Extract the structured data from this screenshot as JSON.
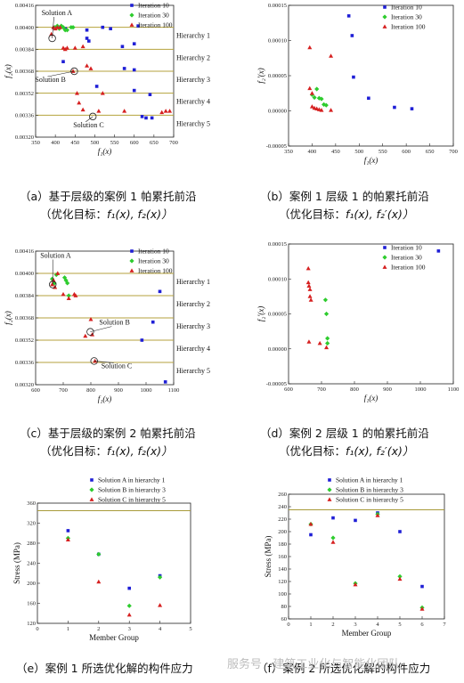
{
  "colors": {
    "iter10": "#1f1fd6",
    "iter30": "#2ecc2e",
    "iter100": "#d62020",
    "hline": "#b5a23c",
    "refline": "#a89a3a",
    "solA": "#1f1fd6",
    "solB": "#2ecc2e",
    "solC": "#d62020"
  },
  "captions": {
    "a1": "（a）基于层级的案例 1 帕累托前沿",
    "a2": "（优化目标：",
    "b1": "（b）案例 1 层级 1 的帕累托前沿",
    "b2": "（优化目标：",
    "c1": "（c）基于层级的案例 2 帕累托前沿",
    "c2": "（优化目标：",
    "d1": "（d）案例 2 层级 1 的帕累托前沿",
    "d2": "（优化目标：",
    "e1": "（e）案例 1 所选优化解的构件应力",
    "f1": "（f）案例 2 所选优化解的构件应力",
    "f1f2": "f₁(x), f₂(x)）",
    "f1f2p": "f₁(x), f₂′(x)）"
  },
  "watermark": "服务号 · 建筑工业化与智能化团队",
  "chart_data": [
    {
      "id": "a",
      "type": "scatter",
      "xlabel": "f₁(x)",
      "ylabel": "f₂(x)",
      "xlim": [
        350,
        700
      ],
      "ylim": [
        0.0032,
        0.00416
      ],
      "xticks": [
        350,
        400,
        450,
        500,
        550,
        600,
        650,
        700
      ],
      "yticks": [
        0.0032,
        0.00336,
        0.00352,
        0.00368,
        0.00384,
        0.004,
        0.00416
      ],
      "ytick_labels": [
        "0.00320",
        "0.00336",
        "0.00352",
        "0.00368",
        "0.00384",
        "0.00400",
        "0.00416"
      ],
      "legend": [
        "Iteration 10",
        "Iteration 30",
        "Iteration 100"
      ],
      "hierarchy_lines": [
        0.004,
        0.00384,
        0.00368,
        0.00352,
        0.00336
      ],
      "hierarchy_labels": [
        "Hierarchy 1",
        "Hierarchy 2",
        "Hierarchy 3",
        "Hierarchy 4",
        "Hierarchy 5"
      ],
      "series": [
        {
          "name": "Iteration 10",
          "marker": "square",
          "points": [
            [
              410,
              0.004
            ],
            [
              425,
              0.00399
            ],
            [
              480,
              0.00398
            ],
            [
              520,
              0.004
            ],
            [
              540,
              0.00399
            ],
            [
              610,
              0.00401
            ],
            [
              480,
              0.00392
            ],
            [
              485,
              0.0039
            ],
            [
              570,
              0.00386
            ],
            [
              600,
              0.00388
            ],
            [
              420,
              0.00375
            ],
            [
              575,
              0.0037
            ],
            [
              600,
              0.00369
            ],
            [
              505,
              0.00357
            ],
            [
              600,
              0.00354
            ],
            [
              640,
              0.00351
            ],
            [
              620,
              0.00335
            ],
            [
              630,
              0.00334
            ],
            [
              645,
              0.00334
            ]
          ]
        },
        {
          "name": "Iteration 30",
          "marker": "diamond",
          "points": [
            [
              398,
              0.004
            ],
            [
              405,
              0.00401
            ],
            [
              410,
              0.00399
            ],
            [
              415,
              0.00401
            ],
            [
              420,
              0.004
            ],
            [
              425,
              0.00398
            ],
            [
              430,
              0.00398
            ],
            [
              440,
              0.004
            ],
            [
              445,
              0.004
            ]
          ]
        },
        {
          "name": "Iteration 100",
          "marker": "triangle",
          "points": [
            [
              390,
              0.00395
            ],
            [
              395,
              0.004
            ],
            [
              400,
              0.00399
            ],
            [
              405,
              0.004
            ],
            [
              412,
              0.004
            ],
            [
              420,
              0.00385
            ],
            [
              425,
              0.00384
            ],
            [
              430,
              0.00385
            ],
            [
              450,
              0.00385
            ],
            [
              470,
              0.00386
            ],
            [
              480,
              0.00372
            ],
            [
              490,
              0.0037
            ],
            [
              445,
              0.00368
            ],
            [
              455,
              0.00352
            ],
            [
              460,
              0.00345
            ],
            [
              470,
              0.0034
            ],
            [
              510,
              0.00339
            ],
            [
              520,
              0.00352
            ],
            [
              575,
              0.00339
            ],
            [
              670,
              0.00338
            ],
            [
              680,
              0.00339
            ],
            [
              690,
              0.00339
            ]
          ]
        }
      ],
      "annotations": [
        {
          "text": "Solution A",
          "at": [
            392,
            0.00392
          ]
        },
        {
          "text": "Solution B",
          "at": [
            448,
            0.00368
          ]
        },
        {
          "text": "Solution C",
          "at": [
            495,
            0.00335
          ]
        }
      ]
    },
    {
      "id": "b",
      "type": "scatter",
      "xlabel": "f₁(x)",
      "ylabel": "f₂′(x)",
      "xlim": [
        350,
        700
      ],
      "ylim": [
        -5e-05,
        0.00015
      ],
      "xticks": [
        350,
        400,
        450,
        500,
        550,
        600,
        650,
        700
      ],
      "yticks": [
        -5e-05,
        0,
        5e-05,
        0.0001,
        0.00015
      ],
      "ytick_labels": [
        "-0.00005",
        "0.00000",
        "0.00005",
        "0.00010",
        "0.00015"
      ],
      "legend": [
        "Iteration 10",
        "Iteration 30",
        "Iteration 100"
      ],
      "series": [
        {
          "name": "Iteration 10",
          "marker": "square",
          "points": [
            [
              478,
              0.000135
            ],
            [
              485,
              0.000107
            ],
            [
              488,
              4.8e-05
            ],
            [
              520,
              1.8e-05
            ],
            [
              575,
              5e-06
            ],
            [
              612,
              3e-06
            ]
          ]
        },
        {
          "name": "Iteration 30",
          "marker": "diamond",
          "points": [
            [
              400,
              2.3e-05
            ],
            [
              405,
              1.9e-05
            ],
            [
              410,
              3.1e-05
            ],
            [
              415,
              1.8e-05
            ],
            [
              420,
              1.7e-05
            ],
            [
              425,
              9e-06
            ],
            [
              430,
              8e-06
            ]
          ]
        },
        {
          "name": "Iteration 100",
          "marker": "triangle",
          "points": [
            [
              395,
              9e-05
            ],
            [
              395,
              3.2e-05
            ],
            [
              400,
              2.5e-05
            ],
            [
              400,
              6e-06
            ],
            [
              405,
              4e-06
            ],
            [
              410,
              3e-06
            ],
            [
              415,
              2e-06
            ],
            [
              420,
              1e-06
            ],
            [
              440,
              1e-06
            ],
            [
              440,
              7.8e-05
            ]
          ]
        }
      ]
    },
    {
      "id": "c",
      "type": "scatter",
      "xlabel": "f₁(x)",
      "ylabel": "f₂(x)",
      "xlim": [
        600,
        1100
      ],
      "ylim": [
        0.0032,
        0.00416
      ],
      "xticks": [
        600,
        700,
        800,
        900,
        1000,
        1100
      ],
      "yticks": [
        0.0032,
        0.00336,
        0.00352,
        0.00368,
        0.00384,
        0.004,
        0.00416
      ],
      "ytick_labels": [
        "0.00320",
        "0.00336",
        "0.00352",
        "0.00368",
        "0.00384",
        "0.00400",
        "0.00416"
      ],
      "legend": [
        "Iteration 10",
        "Iteration 30",
        "Iteration 100"
      ],
      "hierarchy_lines": [
        0.004,
        0.00384,
        0.00368,
        0.00352,
        0.00336
      ],
      "hierarchy_labels": [
        "Hierarchy 1",
        "Hierarchy 2",
        "Hierarchy 3",
        "Hierarchy 4",
        "Hierarchy 5"
      ],
      "series": [
        {
          "name": "Iteration 10",
          "marker": "square",
          "points": [
            [
              1050,
              0.00387
            ],
            [
              1025,
              0.00365
            ],
            [
              985,
              0.00352
            ],
            [
              1070,
              0.00322
            ]
          ]
        },
        {
          "name": "Iteration 30",
          "marker": "diamond",
          "points": [
            [
              660,
              0.00396
            ],
            [
              668,
              0.00393
            ],
            [
              675,
              0.00399
            ],
            [
              705,
              0.00397
            ],
            [
              710,
              0.00395
            ],
            [
              715,
              0.00393
            ],
            [
              720,
              0.00384
            ]
          ]
        },
        {
          "name": "Iteration 100",
          "marker": "triangle",
          "points": [
            [
              660,
              0.00392
            ],
            [
              665,
              0.00395
            ],
            [
              670,
              0.0039
            ],
            [
              680,
              0.004
            ],
            [
              700,
              0.00385
            ],
            [
              720,
              0.00382
            ],
            [
              740,
              0.00385
            ],
            [
              745,
              0.00384
            ],
            [
              800,
              0.00367
            ],
            [
              780,
              0.00355
            ],
            [
              805,
              0.00356
            ],
            [
              815,
              0.00337
            ]
          ]
        }
      ],
      "annotations": [
        {
          "text": "Solution A",
          "at": [
            662,
            0.00392
          ]
        },
        {
          "text": "Solution B",
          "at": [
            798,
            0.00358
          ]
        },
        {
          "text": "Solution C",
          "at": [
            812,
            0.00337
          ]
        }
      ]
    },
    {
      "id": "d",
      "type": "scatter",
      "xlabel": "f₁(x)",
      "ylabel": "f₂′(x)",
      "xlim": [
        600,
        1100
      ],
      "ylim": [
        -5e-05,
        0.00015
      ],
      "xticks": [
        600,
        700,
        800,
        900,
        1000,
        1100
      ],
      "yticks": [
        -5e-05,
        0,
        5e-05,
        0.0001,
        0.00015
      ],
      "ytick_labels": [
        "-0.00005",
        "0.00000",
        "0.00005",
        "0.00010",
        "0.00015"
      ],
      "legend": [
        "Iteration 10",
        "Iteration 30",
        "Iteration 100"
      ],
      "series": [
        {
          "name": "Iteration 10",
          "marker": "square",
          "points": [
            [
              1055,
              0.00014
            ]
          ]
        },
        {
          "name": "Iteration 30",
          "marker": "diamond",
          "points": [
            [
              712,
              7e-05
            ],
            [
              715,
              5e-05
            ],
            [
              718,
              1.5e-05
            ],
            [
              718,
              8e-06
            ]
          ]
        },
        {
          "name": "Iteration 100",
          "marker": "triangle",
          "points": [
            [
              660,
              0.000115
            ],
            [
              660,
              9.5e-05
            ],
            [
              662,
              9e-05
            ],
            [
              665,
              8.5e-05
            ],
            [
              665,
              7.5e-05
            ],
            [
              668,
              7e-05
            ],
            [
              662,
              1e-05
            ],
            [
              695,
              8e-06
            ],
            [
              715,
              2e-06
            ]
          ]
        }
      ]
    },
    {
      "id": "e",
      "type": "scatter",
      "xlabel": "Member Group",
      "ylabel": "Stress (MPa)",
      "xlim": [
        0,
        5
      ],
      "ylim": [
        120,
        360
      ],
      "xticks": [
        0,
        1,
        2,
        3,
        4,
        5
      ],
      "yticks": [
        120,
        160,
        200,
        240,
        280,
        320,
        360
      ],
      "ytick_labels": [
        "120",
        "160",
        "200",
        "240",
        "280",
        "320",
        "360"
      ],
      "reference_line": 345,
      "legend": [
        "Solution A in hierarchy 1",
        "Solution B in hierarchy 3",
        "Solution C in hierarchy 5"
      ],
      "series": [
        {
          "name": "Solution A in hierarchy 1",
          "marker": "square",
          "points": [
            [
              1,
              305
            ],
            [
              2,
              258
            ],
            [
              3,
              190
            ],
            [
              4,
              215
            ]
          ]
        },
        {
          "name": "Solution B in hierarchy 3",
          "marker": "diamond",
          "points": [
            [
              1,
              290
            ],
            [
              2,
              258
            ],
            [
              3,
              155
            ],
            [
              4,
              212
            ]
          ]
        },
        {
          "name": "Solution C in hierarchy 5",
          "marker": "triangle",
          "points": [
            [
              1,
              287
            ],
            [
              2,
              203
            ],
            [
              3,
              137
            ],
            [
              4,
              156
            ]
          ]
        }
      ]
    },
    {
      "id": "f",
      "type": "scatter",
      "xlabel": "Member Group",
      "ylabel": "Stress (MPa)",
      "xlim": [
        0,
        7
      ],
      "ylim": [
        60,
        260
      ],
      "xticks": [
        0,
        1,
        2,
        3,
        4,
        5,
        6,
        7
      ],
      "yticks": [
        60,
        80,
        100,
        120,
        140,
        160,
        180,
        200,
        220,
        240,
        260
      ],
      "ytick_labels": [
        "60",
        "80",
        "100",
        "120",
        "140",
        "160",
        "180",
        "200",
        "220",
        "240",
        "260"
      ],
      "reference_line": 235,
      "legend": [
        "Solution A in hierarchy 1",
        "Solution B in hierarchy 3",
        "Solution C in hierarchy 5"
      ],
      "series": [
        {
          "name": "Solution A in hierarchy 1",
          "marker": "square",
          "points": [
            [
              1,
              195
            ],
            [
              2,
              222
            ],
            [
              3,
              218
            ],
            [
              4,
              230
            ],
            [
              5,
              200
            ],
            [
              6,
              112
            ]
          ]
        },
        {
          "name": "Solution B in hierarchy 3",
          "marker": "diamond",
          "points": [
            [
              1,
              212
            ],
            [
              2,
              190
            ],
            [
              3,
              117
            ],
            [
              4,
              228
            ],
            [
              5,
              128
            ],
            [
              6,
              78
            ]
          ]
        },
        {
          "name": "Solution C in hierarchy 5",
          "marker": "triangle",
          "points": [
            [
              1,
              212
            ],
            [
              2,
              183
            ],
            [
              3,
              115
            ],
            [
              4,
              226
            ],
            [
              5,
              124
            ],
            [
              6,
              76
            ]
          ]
        }
      ]
    }
  ]
}
